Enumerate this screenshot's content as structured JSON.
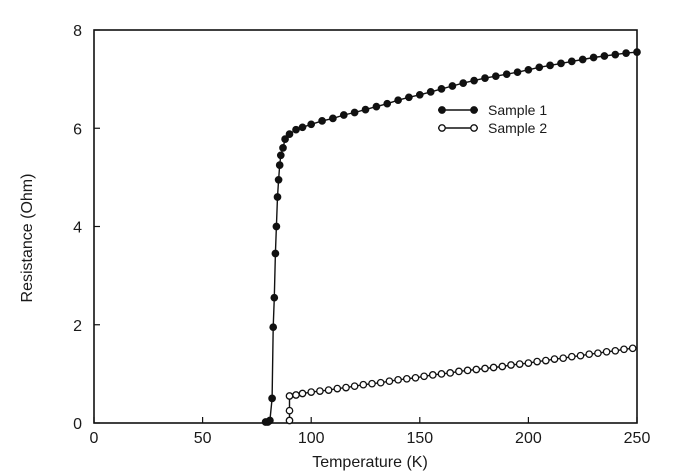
{
  "chart_data": {
    "type": "scatter",
    "xlabel": "Temperature (K)",
    "ylabel": "Resistance (Ohm)",
    "xlim": [
      0,
      250
    ],
    "ylim": [
      0,
      8
    ],
    "x_ticks": [
      0,
      50,
      100,
      150,
      200,
      250
    ],
    "y_ticks": [
      0,
      2,
      4,
      6,
      8
    ],
    "grid": false,
    "legend": "top-right",
    "series": [
      {
        "name": "Sample 1",
        "marker": "filled-circle",
        "color": "#111111",
        "x": [
          79,
          80,
          81,
          82,
          82.5,
          83,
          83.5,
          84,
          84.5,
          85,
          85.5,
          86,
          87,
          88,
          90,
          93,
          96,
          100,
          105,
          110,
          115,
          120,
          125,
          130,
          135,
          140,
          145,
          150,
          155,
          160,
          165,
          170,
          175,
          180,
          185,
          190,
          195,
          200,
          205,
          210,
          215,
          220,
          225,
          230,
          235,
          240,
          245,
          250
        ],
        "y": [
          0.02,
          0.02,
          0.05,
          0.5,
          1.95,
          2.55,
          3.45,
          4.0,
          4.6,
          4.95,
          5.25,
          5.45,
          5.6,
          5.78,
          5.88,
          5.97,
          6.02,
          6.08,
          6.15,
          6.2,
          6.27,
          6.32,
          6.38,
          6.44,
          6.5,
          6.57,
          6.63,
          6.68,
          6.74,
          6.8,
          6.86,
          6.92,
          6.97,
          7.02,
          7.06,
          7.1,
          7.14,
          7.19,
          7.24,
          7.28,
          7.32,
          7.36,
          7.4,
          7.44,
          7.47,
          7.5,
          7.53,
          7.55
        ]
      },
      {
        "name": "Sample 2",
        "marker": "open-circle",
        "color": "#111111",
        "x": [
          90,
          90,
          90,
          93,
          96,
          100,
          104,
          108,
          112,
          116,
          120,
          124,
          128,
          132,
          136,
          140,
          144,
          148,
          152,
          156,
          160,
          164,
          168,
          172,
          176,
          180,
          184,
          188,
          192,
          196,
          200,
          204,
          208,
          212,
          216,
          220,
          224,
          228,
          232,
          236,
          240,
          244,
          248
        ],
        "y": [
          0.05,
          0.25,
          0.55,
          0.57,
          0.6,
          0.63,
          0.65,
          0.67,
          0.7,
          0.72,
          0.75,
          0.78,
          0.8,
          0.82,
          0.85,
          0.88,
          0.9,
          0.92,
          0.95,
          0.98,
          1.0,
          1.02,
          1.05,
          1.07,
          1.09,
          1.11,
          1.13,
          1.15,
          1.18,
          1.2,
          1.22,
          1.25,
          1.27,
          1.3,
          1.32,
          1.35,
          1.37,
          1.4,
          1.42,
          1.45,
          1.47,
          1.5,
          1.52
        ]
      }
    ]
  }
}
